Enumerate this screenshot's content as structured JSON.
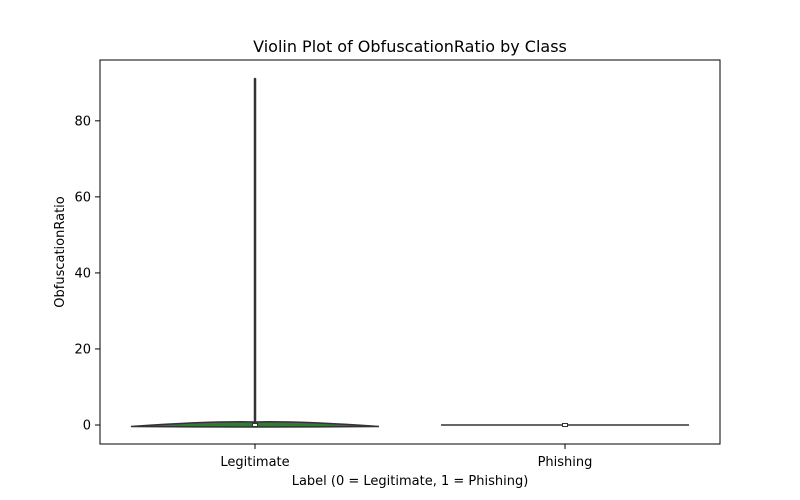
{
  "chart_data": {
    "type": "violin",
    "title": "Violin Plot of ObfuscationRatio by Class",
    "xlabel": "Label (0 = Legitimate, 1 = Phishing)",
    "ylabel": "ObfuscationRatio",
    "categories": [
      "Legitimate",
      "Phishing"
    ],
    "ylim": [
      -5,
      96
    ],
    "yticks": [
      0,
      20,
      40,
      60,
      80
    ],
    "grid": false,
    "series": [
      {
        "category": "Legitimate",
        "color": "#2e7d32",
        "min": 0,
        "max": 91,
        "median": 0,
        "q1": 0,
        "q3": 0,
        "density_extent": [
          -0.4,
          0.8
        ]
      },
      {
        "category": "Phishing",
        "color": "#1f77b4",
        "min": 0,
        "max": 0,
        "median": 0,
        "q1": 0,
        "q3": 0,
        "density_extent": [
          0,
          0
        ]
      }
    ]
  }
}
